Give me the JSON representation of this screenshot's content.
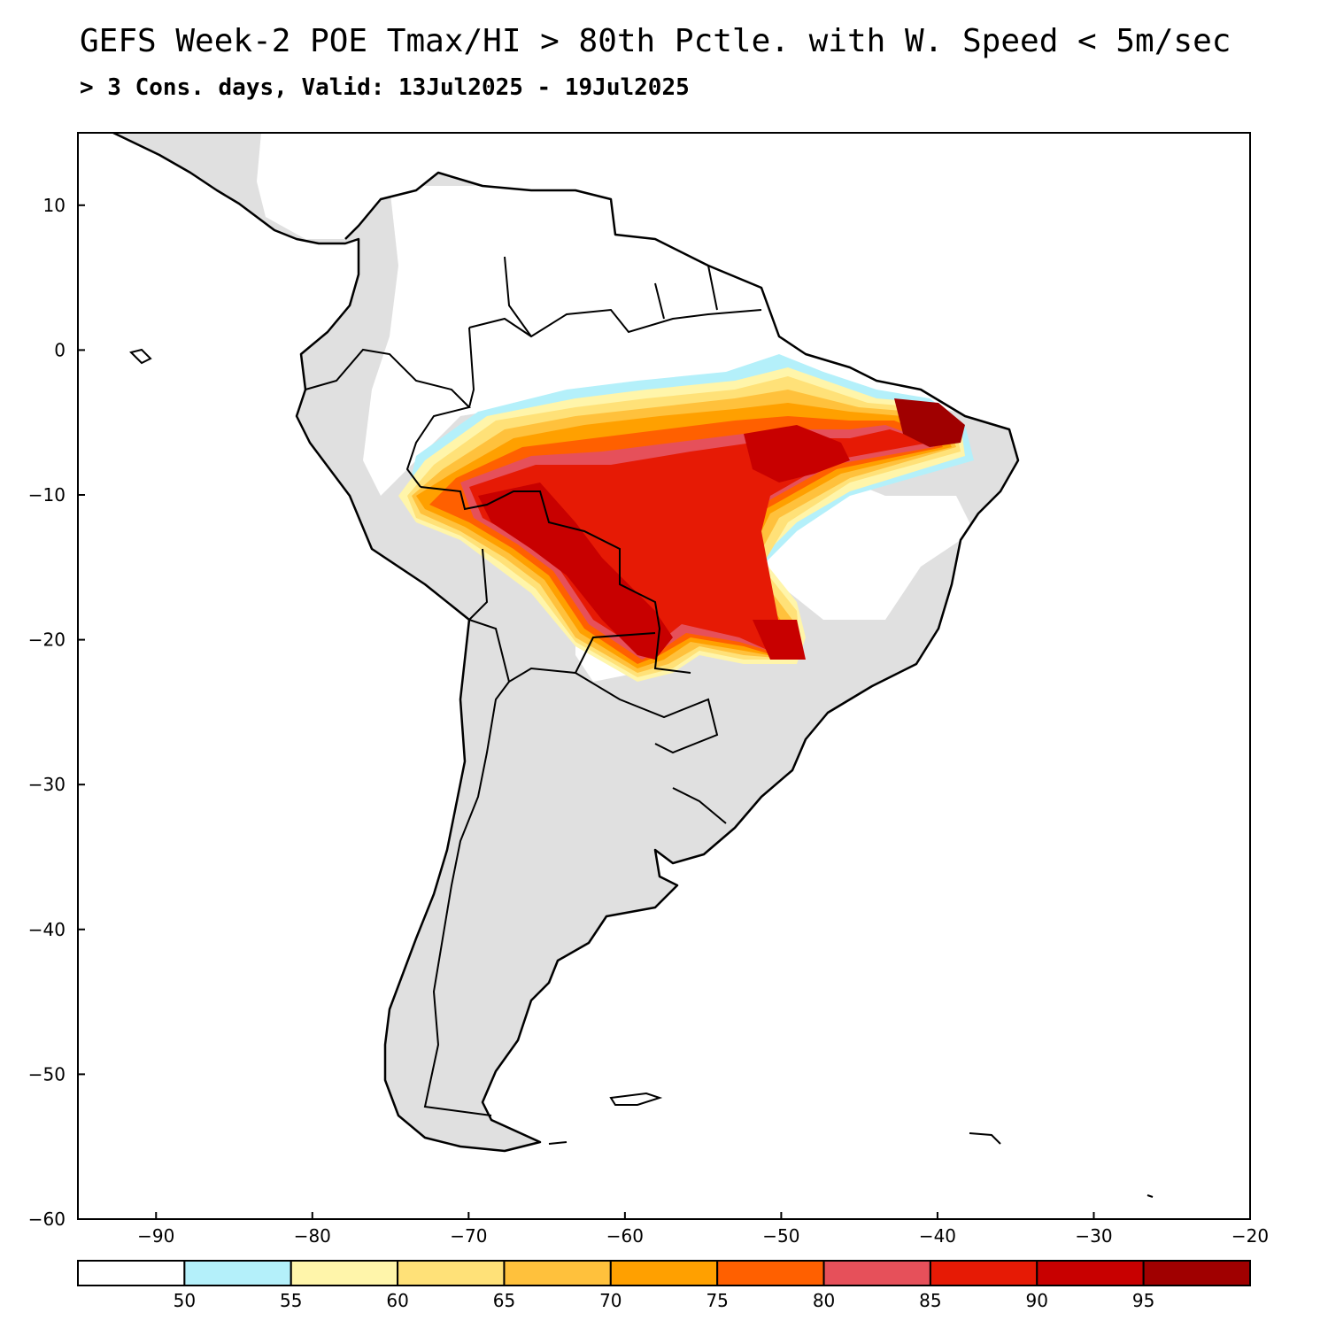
{
  "header": {
    "title": "GEFS Week-2 POE Tmax/HI > 80th Pctle. with W. Speed < 5m/sec",
    "subtitle": "> 3 Cons. days, Valid: 13Jul2025 - 19Jul2025"
  },
  "map": {
    "lon_range": [
      -95,
      -20
    ],
    "lat_range": [
      -60,
      15
    ],
    "lon_ticks": [
      -90,
      -80,
      -70,
      -60,
      -50,
      -40,
      -30,
      -20
    ],
    "lat_ticks": [
      10,
      0,
      -10,
      -20,
      -30,
      -40,
      -50,
      -60
    ],
    "lon_tick_labels": [
      "−90",
      "−80",
      "−70",
      "−60",
      "−50",
      "−40",
      "−30",
      "−20"
    ],
    "lat_tick_labels": [
      "10",
      "0",
      "−10",
      "−20",
      "−30",
      "−40",
      "−50",
      "−60"
    ],
    "land_color": "#e0e0e0",
    "ocean_color": "#ffffff"
  },
  "colorbar": {
    "colors": [
      "#ffffff",
      "#b4f0fa",
      "#fff5aa",
      "#ffe178",
      "#ffc13c",
      "#ffa000",
      "#ff6000",
      "#e6505a",
      "#e61a05",
      "#c80000",
      "#a00000"
    ],
    "labels": [
      "50",
      "55",
      "60",
      "65",
      "70",
      "75",
      "80",
      "85",
      "90",
      "95"
    ]
  }
}
